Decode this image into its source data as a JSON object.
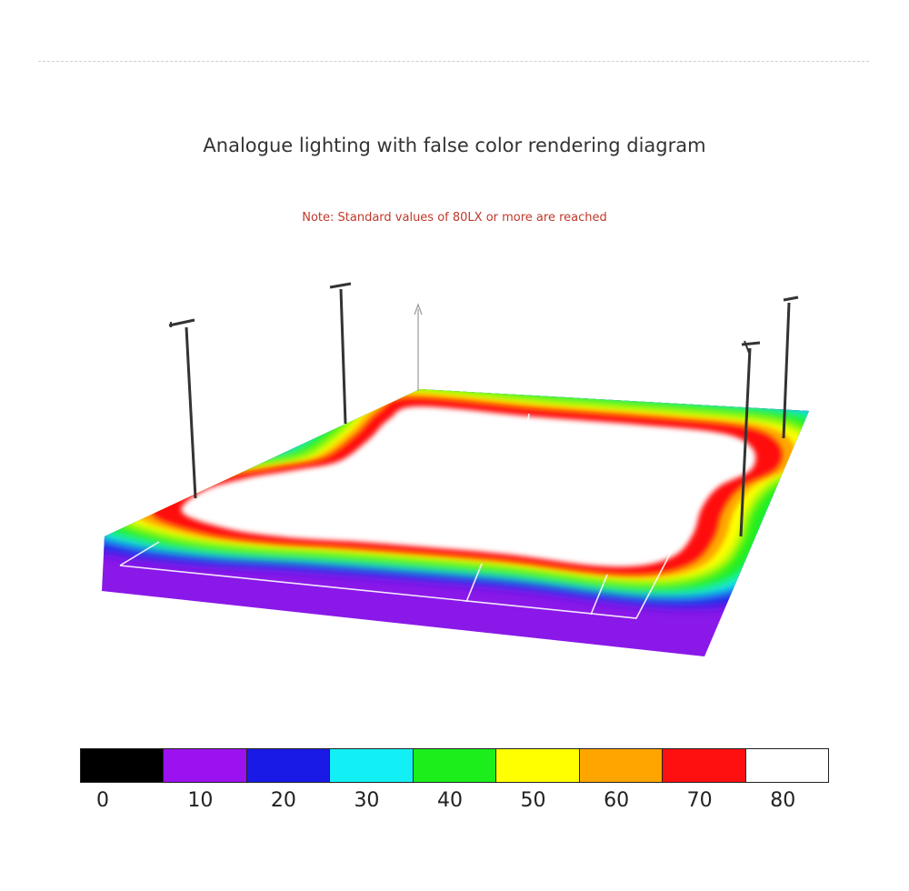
{
  "page": {
    "title": "Analogue lighting with false color rendering diagram",
    "note": "Note: Standard values of 80LX or more are reached",
    "note_color": "#c0392b"
  },
  "legend": {
    "colors": [
      "#000000",
      "#9b11f0",
      "#1a1ae6",
      "#13f0f5",
      "#1bee1b",
      "#ffff00",
      "#ffa500",
      "#ff1010",
      "#ffffff"
    ],
    "labels": [
      "0",
      "10",
      "20",
      "30",
      "40",
      "50",
      "60",
      "70",
      "80"
    ]
  },
  "scene": {
    "pole_count": 4,
    "field_lines_color": "#ffffff"
  }
}
